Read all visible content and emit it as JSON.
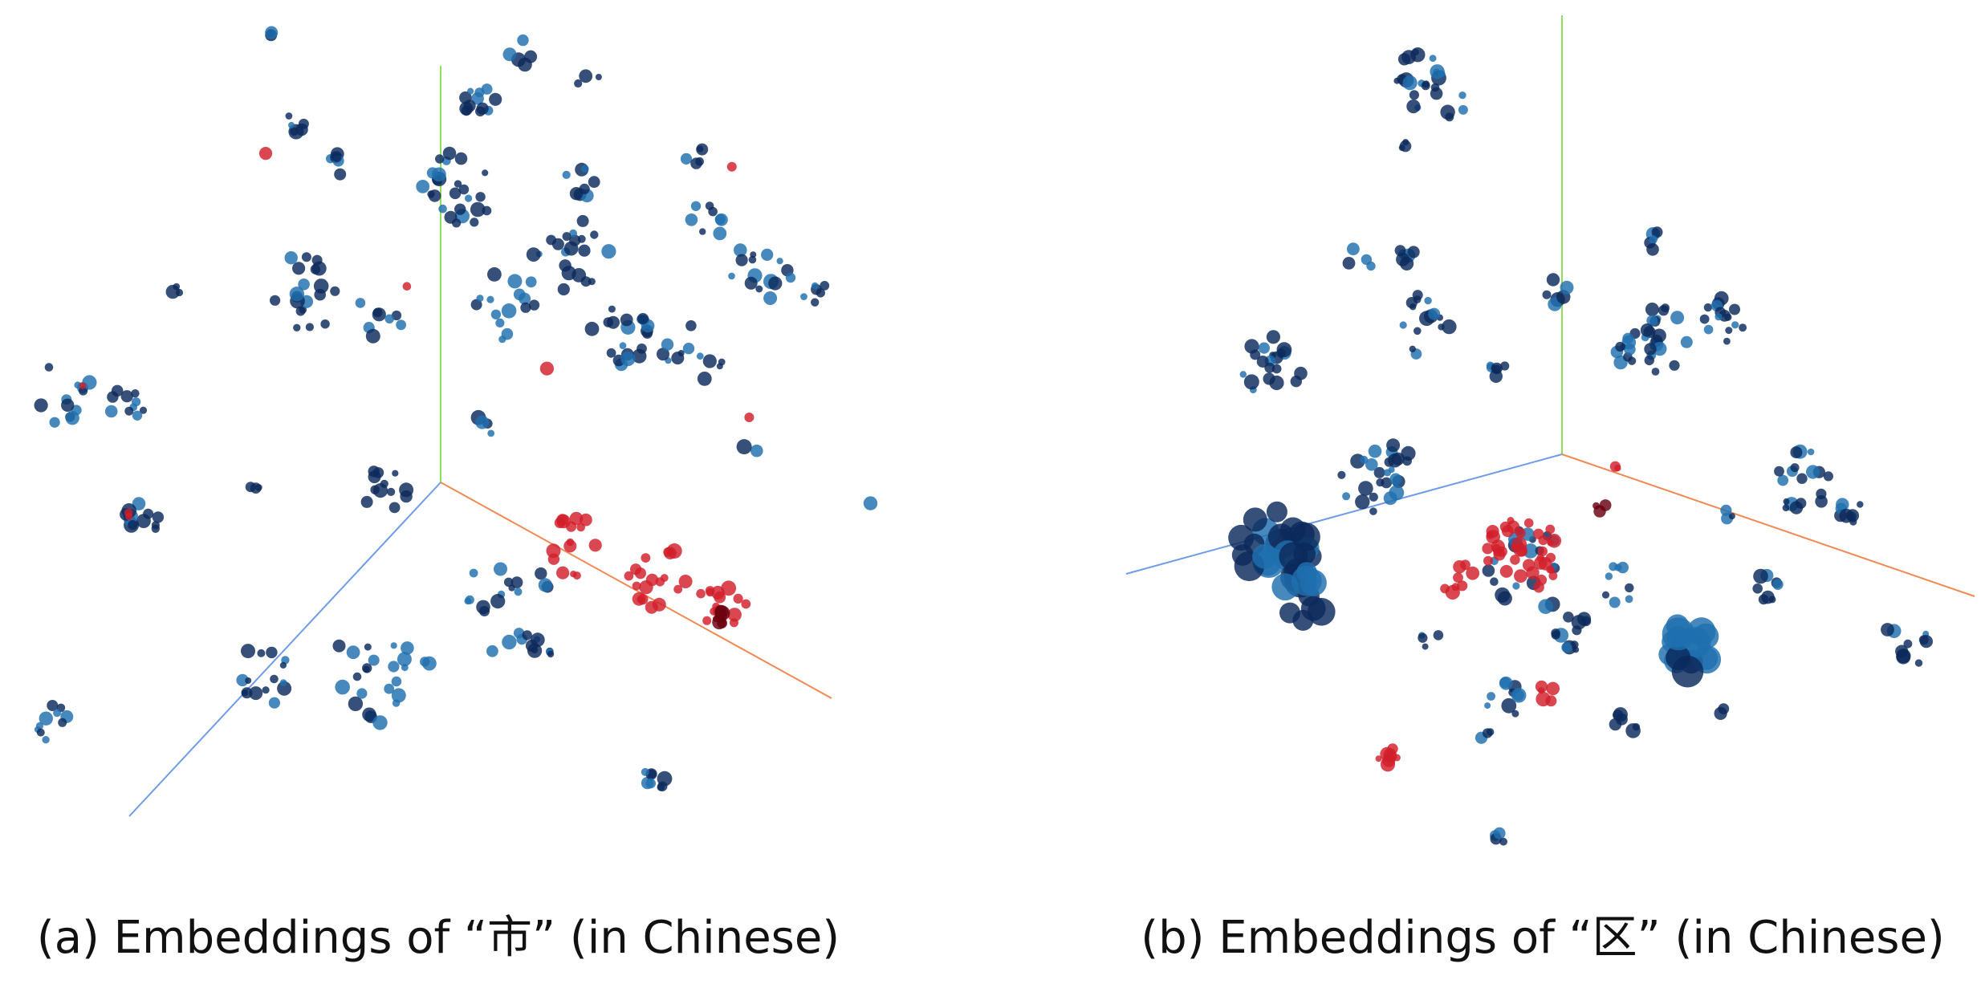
{
  "figures": [
    {
      "caption": "(a) Embeddings of “市” (in Chinese)"
    },
    {
      "caption": "(b) Embeddings of “区” (in Chinese)"
    }
  ]
}
